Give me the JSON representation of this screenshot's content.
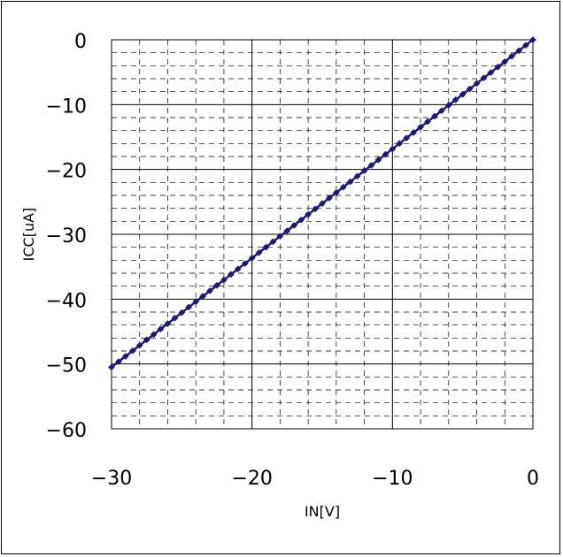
{
  "chart_data": {
    "type": "line",
    "title": "",
    "xlabel": "IN[V]",
    "ylabel": "ICC[uA]",
    "xlim": [
      -30,
      0
    ],
    "ylim": [
      -60,
      0
    ],
    "x_ticks": [
      -30,
      -20,
      -10,
      0
    ],
    "y_ticks": [
      0,
      -10,
      -20,
      -30,
      -40,
      -50,
      -60
    ],
    "x_tick_labels": [
      "−30",
      "−20",
      "−10",
      "0"
    ],
    "y_tick_labels": [
      "0",
      "−10",
      "−20",
      "−30",
      "−40",
      "−50",
      "−60"
    ],
    "grid": true,
    "legend": "none",
    "series": [
      {
        "color": "#1a1a7a",
        "marker": "diamond",
        "x": [
          -30,
          -29.5,
          -29,
          -28.5,
          -28,
          -27.5,
          -27,
          -26.5,
          -26,
          -25.5,
          -25,
          -24.5,
          -24,
          -23.5,
          -23,
          -22.5,
          -22,
          -21.5,
          -21,
          -20.5,
          -20,
          -19.5,
          -19,
          -18.5,
          -18,
          -17.5,
          -17,
          -16.5,
          -16,
          -15.5,
          -15,
          -14.5,
          -14,
          -13.5,
          -13,
          -12.5,
          -12,
          -11.5,
          -11,
          -10.5,
          -10,
          -9.5,
          -9,
          -8.5,
          -8,
          -7.5,
          -7,
          -6.5,
          -6,
          -5.5,
          -5,
          -4.5,
          -4,
          -3.5,
          -3,
          -2.5,
          -2,
          -1.5,
          -1,
          -0.5,
          0
        ],
        "y": [
          -50.5,
          -49.66,
          -48.82,
          -47.97,
          -47.13,
          -46.29,
          -45.45,
          -44.61,
          -43.77,
          -42.93,
          -42.08,
          -41.24,
          -40.4,
          -39.56,
          -38.72,
          -37.88,
          -37.04,
          -36.19,
          -35.35,
          -34.51,
          -33.67,
          -32.83,
          -31.99,
          -31.14,
          -30.3,
          -29.46,
          -28.62,
          -27.78,
          -26.94,
          -26.09,
          -25.25,
          -24.41,
          -23.57,
          -22.73,
          -21.89,
          -21.04,
          -20.2,
          -19.36,
          -18.52,
          -17.68,
          -16.84,
          -15.99,
          -15.15,
          -14.31,
          -13.47,
          -12.63,
          -11.79,
          -10.94,
          -10.1,
          -9.26,
          -8.42,
          -7.58,
          -6.74,
          -5.89,
          -5.05,
          -4.21,
          -3.37,
          -2.53,
          -1.69,
          -0.84,
          0
        ]
      }
    ]
  }
}
